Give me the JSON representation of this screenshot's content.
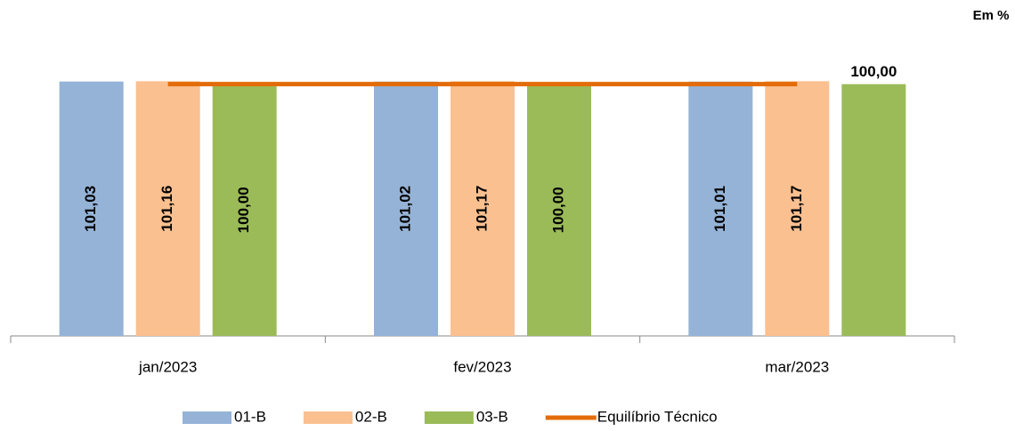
{
  "chart_data": {
    "type": "bar",
    "note": "Em %",
    "categories": [
      "jan/2023",
      "fev/2023",
      "mar/2023"
    ],
    "ylim": [
      0,
      102
    ],
    "series": [
      {
        "name": "01-B",
        "color": "#95b3d7",
        "values": [
          101.03,
          101.02,
          101.01
        ],
        "value_labels": [
          "101,03",
          "101,02",
          "101,01"
        ]
      },
      {
        "name": "02-B",
        "color": "#fac090",
        "values": [
          101.16,
          101.17,
          101.17
        ],
        "value_labels": [
          "101,16",
          "101,17",
          "101,17"
        ]
      },
      {
        "name": "03-B",
        "color": "#9bbb59",
        "values": [
          100,
          100,
          100
        ],
        "value_labels": [
          "100,00",
          "100,00",
          "100,00"
        ]
      },
      {
        "name": "Equilíbrio Técnico",
        "type": "line",
        "color": "#e36c09",
        "values": [
          100,
          100,
          100
        ]
      }
    ]
  }
}
